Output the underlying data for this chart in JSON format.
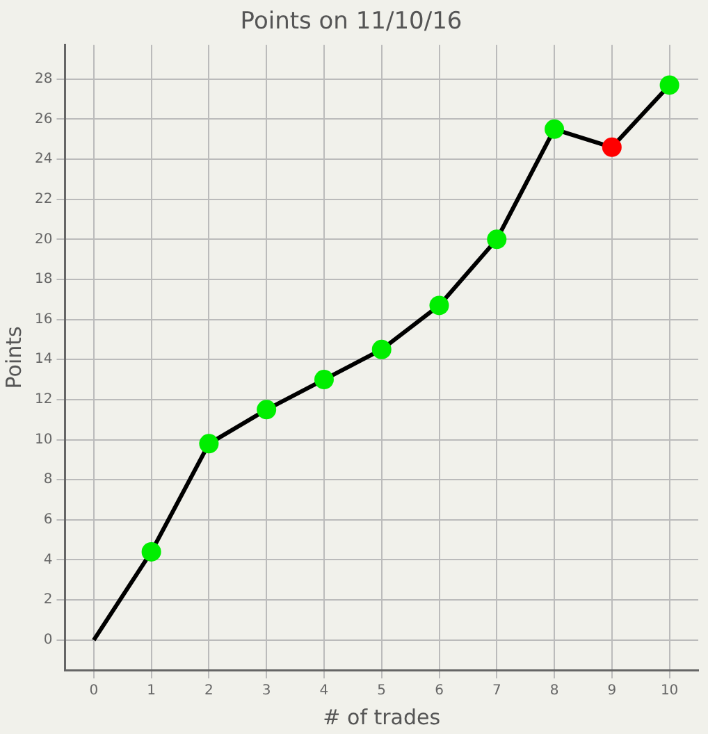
{
  "chart_data": {
    "type": "line",
    "title": "Points on 11/10/16",
    "xlabel": "# of trades",
    "ylabel": "Points",
    "x": [
      0,
      1,
      2,
      3,
      4,
      5,
      6,
      7,
      8,
      9,
      10
    ],
    "series": [
      {
        "color": "#000000",
        "values": [
          0,
          4.4,
          9.8,
          11.5,
          13.0,
          14.5,
          16.7,
          20.0,
          25.5,
          24.6,
          27.7
        ],
        "colors": [
          null,
          "#00ee00",
          "#00ee00",
          "#00ee00",
          "#00ee00",
          "#00ee00",
          "#00ee00",
          "#00ee00",
          "#00ee00",
          "#ff0000",
          "#00ee00"
        ]
      }
    ],
    "xlim": [
      -0.5,
      10.5
    ],
    "xticks": [
      0,
      1,
      2,
      3,
      4,
      5,
      6,
      7,
      8,
      9,
      10
    ],
    "ylim": [
      -1.5,
      29.7
    ],
    "yticks": [
      0,
      2,
      4,
      6,
      8,
      10,
      12,
      14,
      16,
      18,
      20,
      22,
      24,
      26,
      28
    ],
    "grid": true,
    "marker": "circle",
    "line_style": "solid",
    "legend": false
  }
}
